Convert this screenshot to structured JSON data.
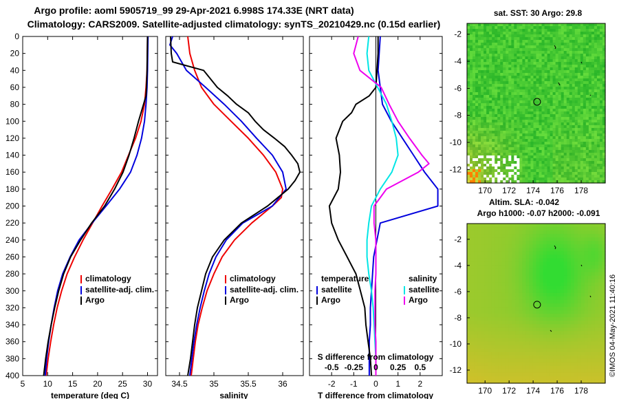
{
  "title_line1": "Argo profile: aoml 5905719_99 29-Apr-2021 6.998S 174.33E (NRT data)",
  "title_line2": "Climatology: CARS2009. Satellite-adjusted climatology: synTS_20210429.nc (0.15d earlier)",
  "credit": "©IMOS 04-May-2021 11:40:16",
  "colors": {
    "climatology": "#ee0000",
    "satellite_adj": "#0000dd",
    "argo": "#000000",
    "sat_salinity": "#00e5e5",
    "argo_salinity": "#ee00ee"
  },
  "depth_ticks": [
    "0",
    "20",
    "40",
    "60",
    "80",
    "100",
    "120",
    "140",
    "160",
    "180",
    "200",
    "220",
    "240",
    "260",
    "280",
    "300",
    "320",
    "340",
    "360",
    "380",
    "400"
  ],
  "legend_labels": {
    "climatology": "climatology",
    "satellite_adj": "satellite-adj. clim.",
    "argo": "Argo",
    "temperature": "temperature",
    "salinity": "salinity",
    "satellite": "satellite",
    "argo2": "Argo"
  },
  "chart_data": [
    {
      "type": "line",
      "name": "temperature-profile",
      "xlabel": "temperature (deg C)",
      "ylabel": "depth",
      "xlim": [
        5,
        32
      ],
      "ylim": [
        400,
        0
      ],
      "x_ticks": [
        "5",
        "10",
        "15",
        "20",
        "25",
        "30"
      ],
      "series": [
        {
          "name": "climatology",
          "color_key": "climatology",
          "depth": [
            0,
            40,
            60,
            80,
            100,
            120,
            140,
            160,
            180,
            200,
            220,
            240,
            260,
            280,
            300,
            320,
            340,
            360,
            380,
            400
          ],
          "values": [
            30,
            29.9,
            29.7,
            29.4,
            28.7,
            27.6,
            26.2,
            24.8,
            22.9,
            20.9,
            19.0,
            17.1,
            15.4,
            13.9,
            12.8,
            11.9,
            11.2,
            10.6,
            10.1,
            9.7
          ]
        },
        {
          "name": "satellite-adj. clim.",
          "color_key": "satellite_adj",
          "depth": [
            0,
            40,
            60,
            80,
            100,
            120,
            140,
            160,
            180,
            200,
            220,
            240,
            260,
            280,
            300,
            320,
            340,
            360,
            380,
            400
          ],
          "values": [
            30.1,
            30.0,
            29.9,
            29.7,
            29.4,
            28.8,
            27.9,
            26.6,
            24.4,
            21.7,
            18.9,
            16.3,
            14.5,
            13.0,
            12.0,
            11.3,
            10.7,
            10.2,
            9.8,
            9.5
          ]
        },
        {
          "name": "Argo",
          "color_key": "argo",
          "depth": [
            0,
            40,
            60,
            70,
            80,
            100,
            120,
            140,
            160,
            180,
            200,
            220,
            240,
            260,
            280,
            300,
            320,
            340,
            360,
            380,
            400
          ],
          "values": [
            30,
            29.9,
            29.8,
            29.7,
            29.2,
            28.2,
            27.3,
            26.3,
            25.1,
            23.4,
            21.4,
            18.8,
            16.6,
            14.6,
            13.2,
            12.2,
            11.4,
            10.7,
            10.1,
            9.6,
            9.2
          ]
        }
      ]
    },
    {
      "type": "line",
      "name": "salinity-profile",
      "xlabel": "salinity",
      "ylabel": "depth",
      "xlim": [
        34.3,
        36.3
      ],
      "ylim": [
        400,
        0
      ],
      "x_ticks": [
        "34.5",
        "35",
        "35.5",
        "36"
      ],
      "series": [
        {
          "name": "climatology",
          "color_key": "climatology",
          "depth": [
            0,
            20,
            40,
            60,
            80,
            100,
            120,
            140,
            160,
            180,
            190,
            200,
            220,
            240,
            260,
            280,
            300,
            320,
            340,
            360,
            380,
            400
          ],
          "values": [
            34.62,
            34.65,
            34.72,
            34.82,
            35.0,
            35.25,
            35.5,
            35.72,
            35.9,
            36.0,
            35.98,
            35.85,
            35.55,
            35.3,
            35.12,
            35.0,
            34.9,
            34.83,
            34.77,
            34.73,
            34.7,
            34.67
          ]
        },
        {
          "name": "satellite-adj. clim.",
          "color_key": "satellite_adj",
          "depth": [
            0,
            10,
            20,
            40,
            60,
            80,
            100,
            120,
            140,
            160,
            180,
            200,
            220,
            240,
            260,
            280,
            300,
            320,
            340,
            360,
            380,
            400
          ],
          "values": [
            34.4,
            34.36,
            34.46,
            34.6,
            34.88,
            35.15,
            35.4,
            35.62,
            35.85,
            36.0,
            36.05,
            35.85,
            35.42,
            35.18,
            35.03,
            34.93,
            34.86,
            34.8,
            34.75,
            34.71,
            34.68,
            34.65
          ]
        },
        {
          "name": "Argo",
          "color_key": "argo",
          "depth": [
            0,
            20,
            30,
            40,
            50,
            60,
            70,
            80,
            90,
            100,
            110,
            120,
            130,
            140,
            150,
            160,
            170,
            180,
            190,
            200,
            220,
            240,
            260,
            280,
            300,
            320,
            340,
            360,
            380,
            400
          ],
          "values": [
            34.37,
            34.38,
            34.4,
            34.85,
            34.95,
            35.05,
            35.2,
            35.33,
            35.5,
            35.6,
            35.72,
            35.88,
            36.03,
            36.13,
            36.22,
            36.25,
            36.18,
            36.08,
            35.93,
            35.78,
            35.4,
            35.15,
            34.98,
            34.88,
            34.82,
            34.76,
            34.72,
            34.69,
            34.66,
            34.62
          ]
        }
      ]
    },
    {
      "type": "line",
      "name": "difference-profile",
      "xlabel": "T difference from climatology",
      "top_label": "S difference from climatology",
      "ylabel": "depth",
      "xlim": [
        -3,
        3
      ],
      "top_xlim": [
        -0.75,
        0.75
      ],
      "ylim": [
        400,
        0
      ],
      "x_ticks": [
        "-2",
        "-1",
        "0",
        "1",
        "2"
      ],
      "top_ticks": [
        "-0.5",
        "-0.25",
        "0",
        "0.25",
        "0.5"
      ],
      "series": [
        {
          "name": "temperature satellite",
          "color_key": "satellite_adj",
          "axis": "T",
          "depth": [
            0,
            20,
            40,
            60,
            80,
            100,
            120,
            140,
            160,
            180,
            200,
            220,
            240,
            260,
            280,
            300,
            320,
            340,
            360,
            380,
            400
          ],
          "values": [
            0.2,
            0.15,
            0.1,
            0.2,
            0.3,
            0.7,
            1.2,
            1.7,
            2.2,
            2.8,
            2.8,
            0.2,
            0.05,
            -0.1,
            -0.15,
            -0.2,
            -0.25,
            -0.25,
            -0.3,
            -0.3,
            -0.3
          ]
        },
        {
          "name": "temperature Argo",
          "color_key": "argo",
          "axis": "T",
          "depth": [
            0,
            20,
            40,
            60,
            70,
            80,
            90,
            100,
            120,
            140,
            160,
            180,
            200,
            220,
            240,
            260,
            280,
            300,
            320,
            340,
            360,
            380,
            400
          ],
          "values": [
            0.1,
            0.1,
            0.05,
            0,
            -0.3,
            -0.9,
            -1.1,
            -1.5,
            -1.8,
            -1.65,
            -1.6,
            -1.7,
            -2.1,
            -2.0,
            -1.7,
            -1.3,
            -0.9,
            -0.7,
            -0.5,
            -0.45,
            -0.35,
            -0.25,
            -0.2
          ]
        },
        {
          "name": "salinity satellite",
          "color_key": "sat_salinity",
          "axis": "S",
          "depth": [
            0,
            20,
            40,
            60,
            80,
            100,
            120,
            140,
            160,
            180,
            200,
            220,
            240,
            260,
            280,
            300,
            320,
            340,
            360,
            380,
            400
          ],
          "values": [
            -0.08,
            -0.1,
            -0.08,
            0.02,
            0.12,
            0.18,
            0.23,
            0.25,
            0.18,
            0.05,
            -0.05,
            -0.08,
            -0.1,
            -0.1,
            -0.08,
            -0.05,
            -0.03,
            -0.02,
            -0.01,
            0,
            0
          ]
        },
        {
          "name": "salinity Argo",
          "color_key": "argo_salinity",
          "axis": "S",
          "depth": [
            0,
            20,
            40,
            60,
            80,
            100,
            120,
            140,
            150,
            160,
            180,
            200,
            220,
            240,
            260,
            280,
            300,
            320,
            340,
            360,
            380,
            400
          ],
          "values": [
            -0.2,
            -0.25,
            -0.18,
            0.06,
            0.15,
            0.25,
            0.38,
            0.52,
            0.6,
            0.48,
            0.12,
            -0.02,
            -0.02,
            0,
            0,
            0,
            -0.01,
            -0.01,
            -0.01,
            0,
            0,
            0
          ]
        }
      ]
    },
    {
      "type": "heatmap",
      "name": "sst-map",
      "title": "sat. SST: 30 Argo: 29.8",
      "xlim": [
        168.5,
        180
      ],
      "ylim": [
        -13,
        -1.2
      ],
      "x_ticks": [
        "170",
        "172",
        "174",
        "176",
        "178"
      ],
      "y_ticks": [
        "-2",
        "-4",
        "-6",
        "-8",
        "-10",
        "-12"
      ],
      "profile_location": {
        "lon": 174.33,
        "lat": -6.998
      }
    },
    {
      "type": "heatmap",
      "name": "sla-map",
      "title": "Altim. SLA: -0.042",
      "subtitle": "Argo h1000: -0.07 h2000: -0.091",
      "xlim": [
        168.5,
        180
      ],
      "ylim": [
        -13,
        -0.8
      ],
      "x_ticks": [
        "170",
        "172",
        "174",
        "176",
        "178"
      ],
      "y_ticks": [
        "-2",
        "-4",
        "-6",
        "-8",
        "-10",
        "-12"
      ],
      "profile_location": {
        "lon": 174.33,
        "lat": -6.998
      }
    }
  ]
}
